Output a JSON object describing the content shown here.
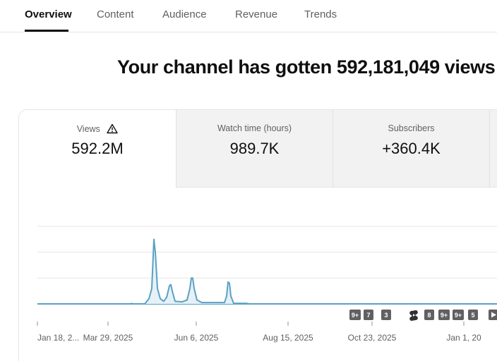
{
  "tabs": [
    {
      "label": "Overview",
      "active": true
    },
    {
      "label": "Content",
      "active": false
    },
    {
      "label": "Audience",
      "active": false
    },
    {
      "label": "Revenue",
      "active": false
    },
    {
      "label": "Trends",
      "active": false
    }
  ],
  "headline": "Your channel has gotten 592,181,049 views",
  "metrics": [
    {
      "label": "Views",
      "value": "592.2M",
      "icon": "warning-icon"
    },
    {
      "label": "Watch time (hours)",
      "value": "989.7K"
    },
    {
      "label": "Subscribers",
      "value": "+360.4K"
    }
  ],
  "colors": {
    "line": "#5aa1c3",
    "area": "#e6f1f7",
    "badge": "#606060"
  },
  "chart_data": {
    "type": "line",
    "x_tick_labels": [
      "Jan 18, 2...",
      "Mar 29, 2025",
      "Jun 6, 2025",
      "Aug 15, 2025",
      "Oct 23, 2025",
      "Jan 1, 20"
    ],
    "ylim": [
      0,
      3
    ],
    "grid": true,
    "series": [
      {
        "values": [
          [
            0,
            0
          ],
          [
            60,
            0
          ],
          [
            132,
            0
          ],
          [
            133,
            0.02
          ],
          [
            135,
            0
          ],
          [
            152,
            0
          ],
          [
            158,
            0.2
          ],
          [
            162,
            0.6
          ],
          [
            165,
            2.5
          ],
          [
            167,
            2.0
          ],
          [
            170,
            0.6
          ],
          [
            174,
            0.2
          ],
          [
            179,
            0.1
          ],
          [
            183,
            0.25
          ],
          [
            187,
            0.7
          ],
          [
            189,
            0.75
          ],
          [
            191,
            0.5
          ],
          [
            195,
            0.1
          ],
          [
            205,
            0.08
          ],
          [
            212,
            0.15
          ],
          [
            216,
            0.6
          ],
          [
            218,
            1.0
          ],
          [
            220,
            1.0
          ],
          [
            222,
            0.6
          ],
          [
            226,
            0.15
          ],
          [
            233,
            0.05
          ],
          [
            265,
            0.05
          ],
          [
            268,
            0.3
          ],
          [
            270,
            0.85
          ],
          [
            272,
            0.8
          ],
          [
            274,
            0.3
          ],
          [
            278,
            0.02
          ],
          [
            296,
            0.02
          ],
          [
            300,
            0
          ],
          [
            470,
            0
          ]
        ]
      }
    ],
    "markers": [
      "9+",
      "7",
      "3",
      "shorts-icon",
      "8",
      "9+",
      "9+",
      "5",
      "play-icon"
    ]
  }
}
